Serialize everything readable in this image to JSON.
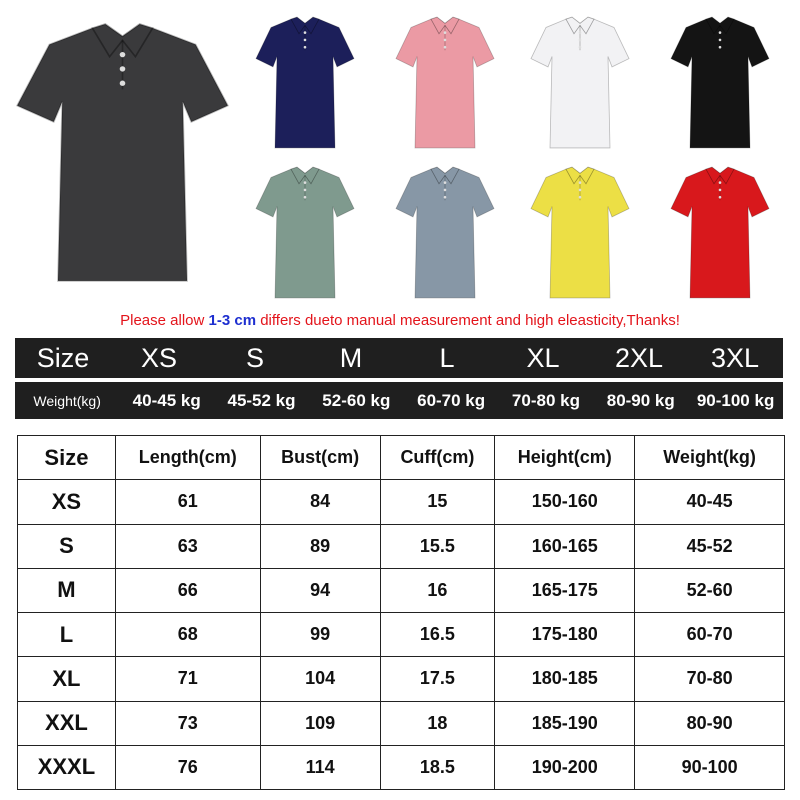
{
  "shirts": [
    {
      "color": "#3a3a3c",
      "name": "dark-gray"
    },
    {
      "color": "#1c1f5a",
      "name": "navy"
    },
    {
      "color": "#eb9aa4",
      "name": "pink"
    },
    {
      "color": "#f2f2f4",
      "name": "white"
    },
    {
      "color": "#141414",
      "name": "black"
    },
    {
      "color": "#7f9a8e",
      "name": "sage-green"
    },
    {
      "color": "#8797a6",
      "name": "gray-blue"
    },
    {
      "color": "#ecdf45",
      "name": "yellow"
    },
    {
      "color": "#d8181c",
      "name": "red"
    }
  ],
  "notice": {
    "before": "Please allow ",
    "highlight": "1-3 cm",
    "after": " differs dueto manual measurement and high eleasticity,Thanks!"
  },
  "size_bar": [
    "Size",
    "XS",
    "S",
    "M",
    "L",
    "XL",
    "2XL",
    "3XL"
  ],
  "weight_bar": [
    "Weight(kg)",
    "40-45 kg",
    "45-52 kg",
    "52-60 kg",
    "60-70 kg",
    "70-80 kg",
    "80-90 kg",
    "90-100 kg"
  ],
  "table": {
    "headers": [
      "Size",
      "Length(cm)",
      "Bust(cm)",
      "Cuff(cm)",
      "Height(cm)",
      "Weight(kg)"
    ],
    "rows": [
      [
        "XS",
        "61",
        "84",
        "15",
        "150-160",
        "40-45"
      ],
      [
        "S",
        "63",
        "89",
        "15.5",
        "160-165",
        "45-52"
      ],
      [
        "M",
        "66",
        "94",
        "16",
        "165-175",
        "52-60"
      ],
      [
        "L",
        "68",
        "99",
        "16.5",
        "175-180",
        "60-70"
      ],
      [
        "XL",
        "71",
        "104",
        "17.5",
        "180-185",
        "70-80"
      ],
      [
        "XXL",
        "73",
        "109",
        "18",
        "185-190",
        "80-90"
      ],
      [
        "XXXL",
        "76",
        "114",
        "18.5",
        "190-200",
        "90-100"
      ]
    ]
  }
}
